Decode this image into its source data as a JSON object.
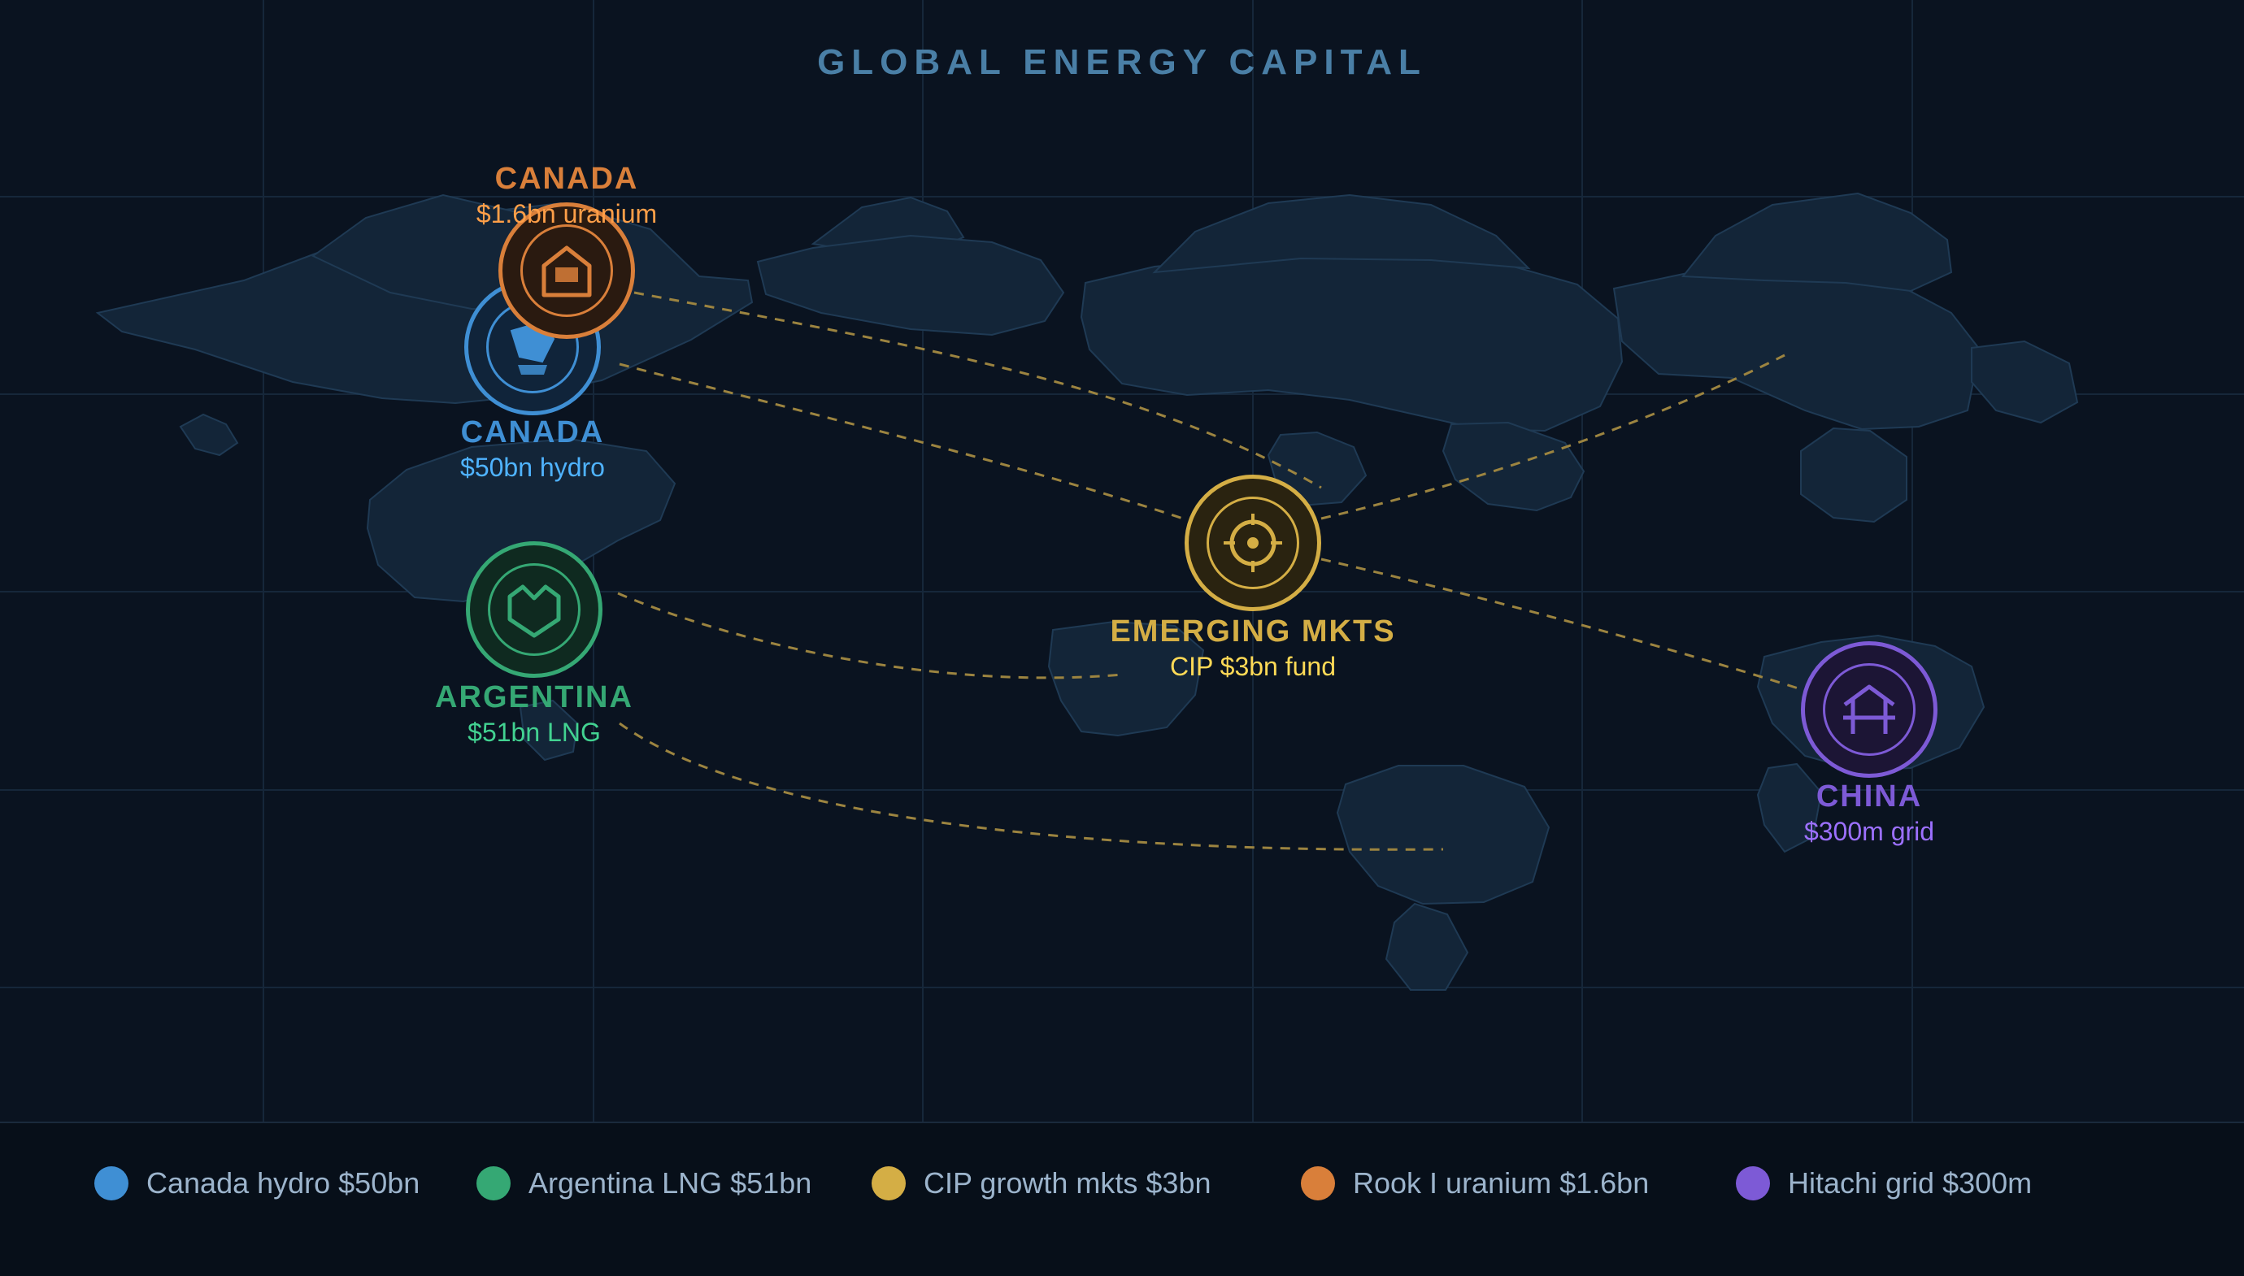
{
  "title": "GLOBAL ENERGY CAPITAL",
  "map_style": {
    "background": "#0a1320",
    "land_fill": "#132538",
    "land_stroke": "#1f3a54",
    "grid_color": "#16273a",
    "flow_line_color": "#9c8440"
  },
  "markers": [
    {
      "id": "canada-hydro",
      "name": "CANADA",
      "amount": "$50bn hydro",
      "color": "#3f8fd4",
      "fill": "#10243a",
      "icon": "hydro-dam-icon"
    },
    {
      "id": "canada-uranium",
      "name": "CANADA",
      "amount": "$1.6bn uranium",
      "color": "#d97f3a",
      "fill": "#2a1a10",
      "icon": "uranium-mine-icon"
    },
    {
      "id": "argentina-lng",
      "name": "ARGENTINA",
      "amount": "$51bn LNG",
      "color": "#35a874",
      "fill": "#0f2a20",
      "icon": "lng-tank-icon"
    },
    {
      "id": "emerging-markets",
      "name": "EMERGING MKTS",
      "amount": "CIP $3bn fund",
      "color": "#d4ae45",
      "fill": "#2a2310",
      "icon": "target-icon"
    },
    {
      "id": "china-grid",
      "name": "CHINA",
      "amount": "$300m grid",
      "color": "#7d5ad6",
      "fill": "#1c1535",
      "icon": "power-grid-icon"
    }
  ],
  "legend": [
    {
      "label": "Canada hydro $50bn",
      "color": "#3f8fd4"
    },
    {
      "label": "Argentina LNG $51bn",
      "color": "#35a874"
    },
    {
      "label": "CIP growth mkts $3bn",
      "color": "#d4ae45"
    },
    {
      "label": "Rook I uranium $1.6bn",
      "color": "#d97f3a"
    },
    {
      "label": "Hitachi grid $300m",
      "color": "#7d5ad6"
    }
  ]
}
